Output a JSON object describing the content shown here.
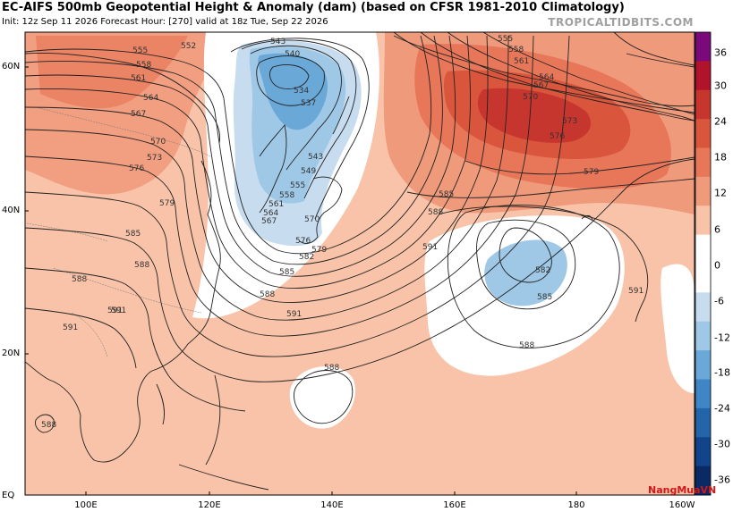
{
  "title": "EC-AIFS 500mb Geopotential Height & Anomaly (dam) (based on CFSR 1981-2010 Climatology)",
  "subtitle": "Init: 12z Sep 11 2026   Forecast Hour: [270]   valid at 18z Tue, Sep 22 2026",
  "brand": "TROPICALTIDBITS.COM",
  "watermark": "NangMuaVN",
  "lat_labels": [
    "60N",
    "40N",
    "20N",
    "EQ"
  ],
  "lon_labels": [
    "100E",
    "120E",
    "140E",
    "160E",
    "180",
    "160W"
  ],
  "colorbar": {
    "ticks": [
      "36",
      "30",
      "24",
      "18",
      "12",
      "6",
      "0",
      "-6",
      "-12",
      "-18",
      "-24",
      "-30",
      "-36"
    ],
    "colors": [
      "#7a0a7a",
      "#b0132a",
      "#c7362e",
      "#d9553c",
      "#e8775a",
      "#f09a7c",
      "#f8c3a8",
      "#ffffff",
      "#ffffff",
      "#c7dcef",
      "#9ec8e6",
      "#6aa8d8",
      "#3f86c6",
      "#2464a8",
      "#11448a",
      "#0a2a66"
    ]
  },
  "contour_labels": [
    {
      "text": "543"
    },
    {
      "text": "540"
    },
    {
      "text": "534"
    },
    {
      "text": "537"
    },
    {
      "text": "543"
    },
    {
      "text": "549"
    },
    {
      "text": "555"
    },
    {
      "text": "558"
    },
    {
      "text": "561"
    },
    {
      "text": "564"
    },
    {
      "text": "567"
    },
    {
      "text": "570"
    },
    {
      "text": "576"
    },
    {
      "text": "579"
    },
    {
      "text": "582"
    },
    {
      "text": "585"
    },
    {
      "text": "588"
    },
    {
      "text": "591"
    },
    {
      "text": "552"
    },
    {
      "text": "555"
    },
    {
      "text": "558"
    },
    {
      "text": "561"
    },
    {
      "text": "564"
    },
    {
      "text": "567"
    },
    {
      "text": "570"
    },
    {
      "text": "573"
    },
    {
      "text": "576"
    },
    {
      "text": "579"
    },
    {
      "text": "585"
    },
    {
      "text": "588"
    },
    {
      "text": "591"
    },
    {
      "text": "591"
    },
    {
      "text": "588"
    },
    {
      "text": "555"
    },
    {
      "text": "558"
    },
    {
      "text": "561"
    },
    {
      "text": "564"
    },
    {
      "text": "567"
    },
    {
      "text": "570"
    },
    {
      "text": "573"
    },
    {
      "text": "576"
    },
    {
      "text": "579"
    },
    {
      "text": "585"
    },
    {
      "text": "588"
    },
    {
      "text": "591"
    },
    {
      "text": "582"
    },
    {
      "text": "585"
    },
    {
      "text": "588"
    },
    {
      "text": "591"
    },
    {
      "text": "588"
    },
    {
      "text": "588"
    },
    {
      "text": "591"
    }
  ]
}
